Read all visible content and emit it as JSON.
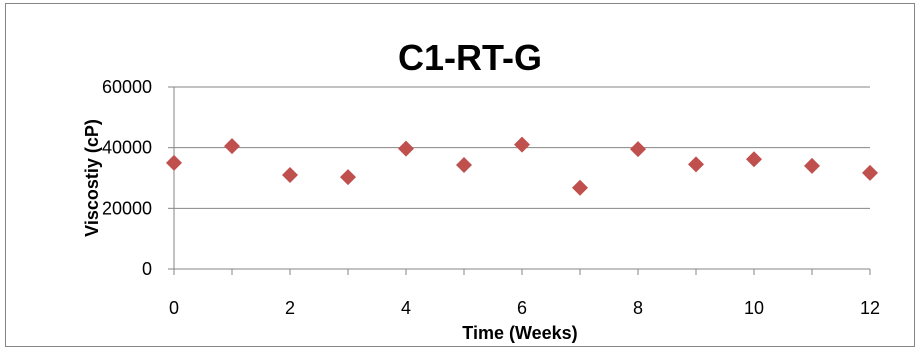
{
  "chart_data": {
    "type": "scatter",
    "title": "C1-RT-G",
    "xlabel": "Time (Weeks)",
    "ylabel": "Viscostiy (cP)",
    "xlim": [
      0,
      12
    ],
    "ylim": [
      0,
      60000
    ],
    "x_ticks": [
      "0",
      "2",
      "4",
      "6",
      "8",
      "10",
      "12"
    ],
    "y_ticks": [
      "0",
      "20000",
      "40000",
      "60000"
    ],
    "grid": "horizontal major gridlines",
    "legend": "none",
    "marker": "diamond",
    "marker_color": "#C0504D",
    "series": [
      {
        "x": [
          0,
          1,
          2,
          3,
          4,
          5,
          6,
          7,
          8,
          9,
          10,
          11,
          12
        ],
        "y": [
          35000,
          40500,
          31000,
          30300,
          39700,
          34300,
          41000,
          26800,
          39500,
          34500,
          36200,
          34000,
          31700
        ]
      }
    ]
  }
}
